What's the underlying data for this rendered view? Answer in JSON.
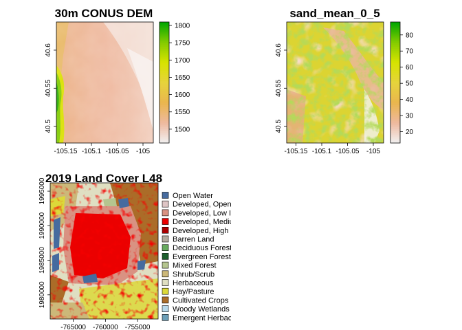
{
  "chart_data": [
    {
      "type": "heatmap",
      "title": "30m CONUS DEM",
      "x_ticks": [
        -105.15,
        -105.1,
        -105.05,
        -105
      ],
      "x_tick_labels": [
        "-105.15",
        "-105.1",
        "-105.05",
        "-105"
      ],
      "y_ticks": [
        40.5,
        40.55,
        40.6
      ],
      "y_tick_labels": [
        "40.5",
        "40.55",
        "40.6"
      ],
      "xlim": [
        -105.168,
        -104.98
      ],
      "ylim": [
        40.478,
        40.637
      ],
      "colorbar": {
        "range": [
          1460,
          1810
        ],
        "ticks": [
          1500,
          1550,
          1600,
          1650,
          1700,
          1750,
          1800
        ],
        "tick_labels": [
          "1500",
          "1550",
          "1600",
          "1650",
          "1700",
          "1750",
          "1800"
        ],
        "palette": [
          "#f2f2f2",
          "#eeb99f",
          "#eab64e",
          "#e6d33c",
          "#d7e300",
          "#85cc00",
          "#00a600"
        ]
      }
    },
    {
      "type": "heatmap",
      "title": "sand_mean_0_5",
      "x_ticks": [
        -105.15,
        -105.1,
        -105.05,
        -105
      ],
      "x_tick_labels": [
        "-105.15",
        "-105.1",
        "-105.05",
        "-105"
      ],
      "y_ticks": [
        40.5,
        40.55,
        40.6
      ],
      "y_tick_labels": [
        "40.5",
        "40.55",
        "40.6"
      ],
      "xlim": [
        -105.168,
        -104.98
      ],
      "ylim": [
        40.478,
        40.637
      ],
      "colorbar": {
        "range": [
          13,
          88
        ],
        "ticks": [
          20,
          30,
          40,
          50,
          60,
          70,
          80
        ],
        "tick_labels": [
          "20",
          "30",
          "40",
          "50",
          "60",
          "70",
          "80"
        ],
        "palette": [
          "#f2f2f2",
          "#eeb99f",
          "#eab64e",
          "#e6d33c",
          "#d7e300",
          "#85cc00",
          "#00a600"
        ]
      }
    },
    {
      "type": "heatmap",
      "title": "2019 Land Cover L48",
      "x_ticks": [
        -765000,
        -760000,
        -755000
      ],
      "x_tick_labels": [
        "-765000",
        "-760000",
        "-755000"
      ],
      "y_ticks": [
        1980000,
        1985000,
        1990000,
        1995000
      ],
      "y_tick_labels": [
        "1980000",
        "1985000",
        "1990000",
        "1995000"
      ],
      "xlim": [
        -768600,
        -751800
      ],
      "ylim": [
        1976500,
        1996200
      ],
      "legend": [
        {
          "label": "Open Water",
          "color": "#466b9f"
        },
        {
          "label": "Developed, Open",
          "color": "#dec5c5"
        },
        {
          "label": "Developed, Low In",
          "color": "#d99282"
        },
        {
          "label": "Developed, Mediu",
          "color": "#eb0000"
        },
        {
          "label": "Developed, High I",
          "color": "#ab0000"
        },
        {
          "label": "Barren Land",
          "color": "#b3ac9f"
        },
        {
          "label": "Deciduous Forest",
          "color": "#68ab5f"
        },
        {
          "label": "Evergreen Forest",
          "color": "#1c5f2c"
        },
        {
          "label": "Mixed Forest",
          "color": "#b5c58f"
        },
        {
          "label": "Shrub/Scrub",
          "color": "#ccb879"
        },
        {
          "label": "Herbaceous",
          "color": "#dfdfc2"
        },
        {
          "label": "Hay/Pasture",
          "color": "#dcd939"
        },
        {
          "label": "Cultivated Crops",
          "color": "#ab6c28"
        },
        {
          "label": "Woody Wetlands",
          "color": "#b8d9eb"
        },
        {
          "label": "Emergent Herbace",
          "color": "#6c9fb8"
        }
      ]
    }
  ]
}
